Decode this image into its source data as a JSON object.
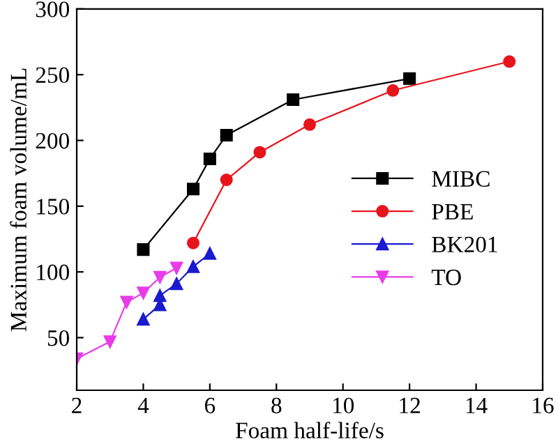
{
  "chart_data": {
    "type": "line",
    "xlabel": "Foam half-life/s",
    "ylabel": "Maximum foam volume/mL",
    "xlim": [
      2,
      16
    ],
    "xticks": [
      2,
      4,
      6,
      8,
      10,
      12,
      14,
      16
    ],
    "ylim": [
      10,
      300
    ],
    "yticks": [
      50,
      100,
      150,
      200,
      250,
      300
    ],
    "grid": false,
    "legend": "right",
    "series": [
      {
        "name": "MIBC",
        "color": "#000000",
        "marker": "square",
        "x": [
          4,
          5.5,
          6,
          6.5,
          8.5,
          12
        ],
        "values": [
          117,
          163,
          186,
          204,
          231,
          247
        ]
      },
      {
        "name": "PBE",
        "color": "#e8141c",
        "marker": "circle",
        "x": [
          5.5,
          6.5,
          7.5,
          9,
          11.5,
          15
        ],
        "values": [
          122,
          170,
          191,
          212,
          238,
          260
        ]
      },
      {
        "name": "BK201",
        "color": "#1a1ad0",
        "marker": "triangle",
        "x": [
          4,
          4.5,
          4.5,
          5,
          5.5,
          6
        ],
        "values": [
          64,
          75,
          82,
          91,
          104,
          114
        ]
      },
      {
        "name": "TO",
        "color": "#e83ce8",
        "marker": "triangle_down",
        "x": [
          2,
          3,
          3.5,
          4,
          4.5,
          5
        ],
        "values": [
          34,
          47,
          77,
          84,
          96,
          103
        ]
      }
    ]
  }
}
